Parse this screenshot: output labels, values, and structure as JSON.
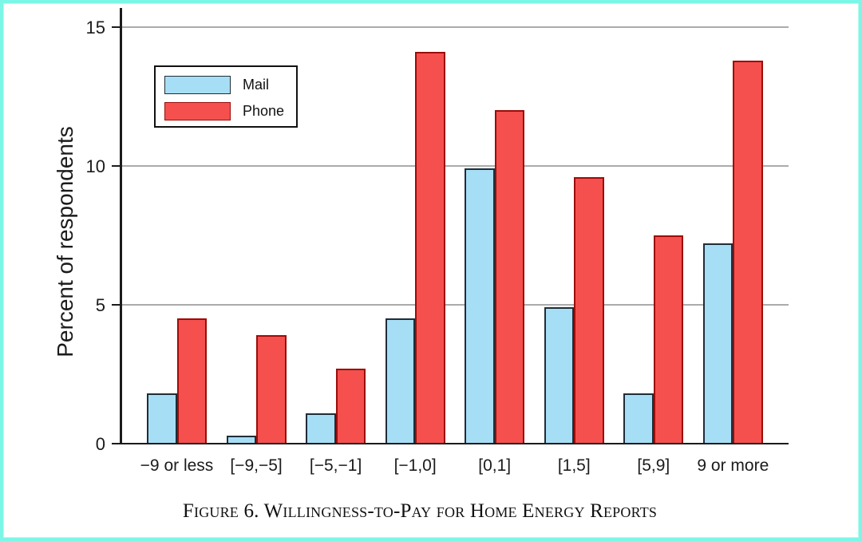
{
  "figure": {
    "caption": "Figure 6. Willingness-to-Pay for Home Energy Reports",
    "border_color": "#7cf6e6"
  },
  "chart_data": {
    "type": "bar",
    "title": "Figure 6. Willingness-to-Pay for Home Energy Reports",
    "xlabel": "",
    "ylabel": "Percent of respondents",
    "categories": [
      "−9 or less",
      "[−9,−5]",
      "[−5,−1]",
      "[−1,0]",
      "[0,1]",
      "[1,5]",
      "[5,9]",
      "9 or more"
    ],
    "series": [
      {
        "name": "Mail",
        "values": [
          1.8,
          0.3,
          1.1,
          4.5,
          9.9,
          4.9,
          1.8,
          7.2
        ],
        "color": "#a6def5",
        "edge_color": "#1f2d38"
      },
      {
        "name": "Phone",
        "values": [
          4.5,
          3.9,
          2.7,
          14.1,
          12.0,
          9.6,
          7.5,
          13.8
        ],
        "color": "#f5504e",
        "edge_color": "#9c0c08"
      }
    ],
    "ylim": [
      0,
      15
    ],
    "yticks": [
      0,
      5,
      10,
      15
    ],
    "grid": "horizontal",
    "legend_position": "upper left",
    "axis_color": "#1b1b1b",
    "grid_color": "#ababab"
  }
}
